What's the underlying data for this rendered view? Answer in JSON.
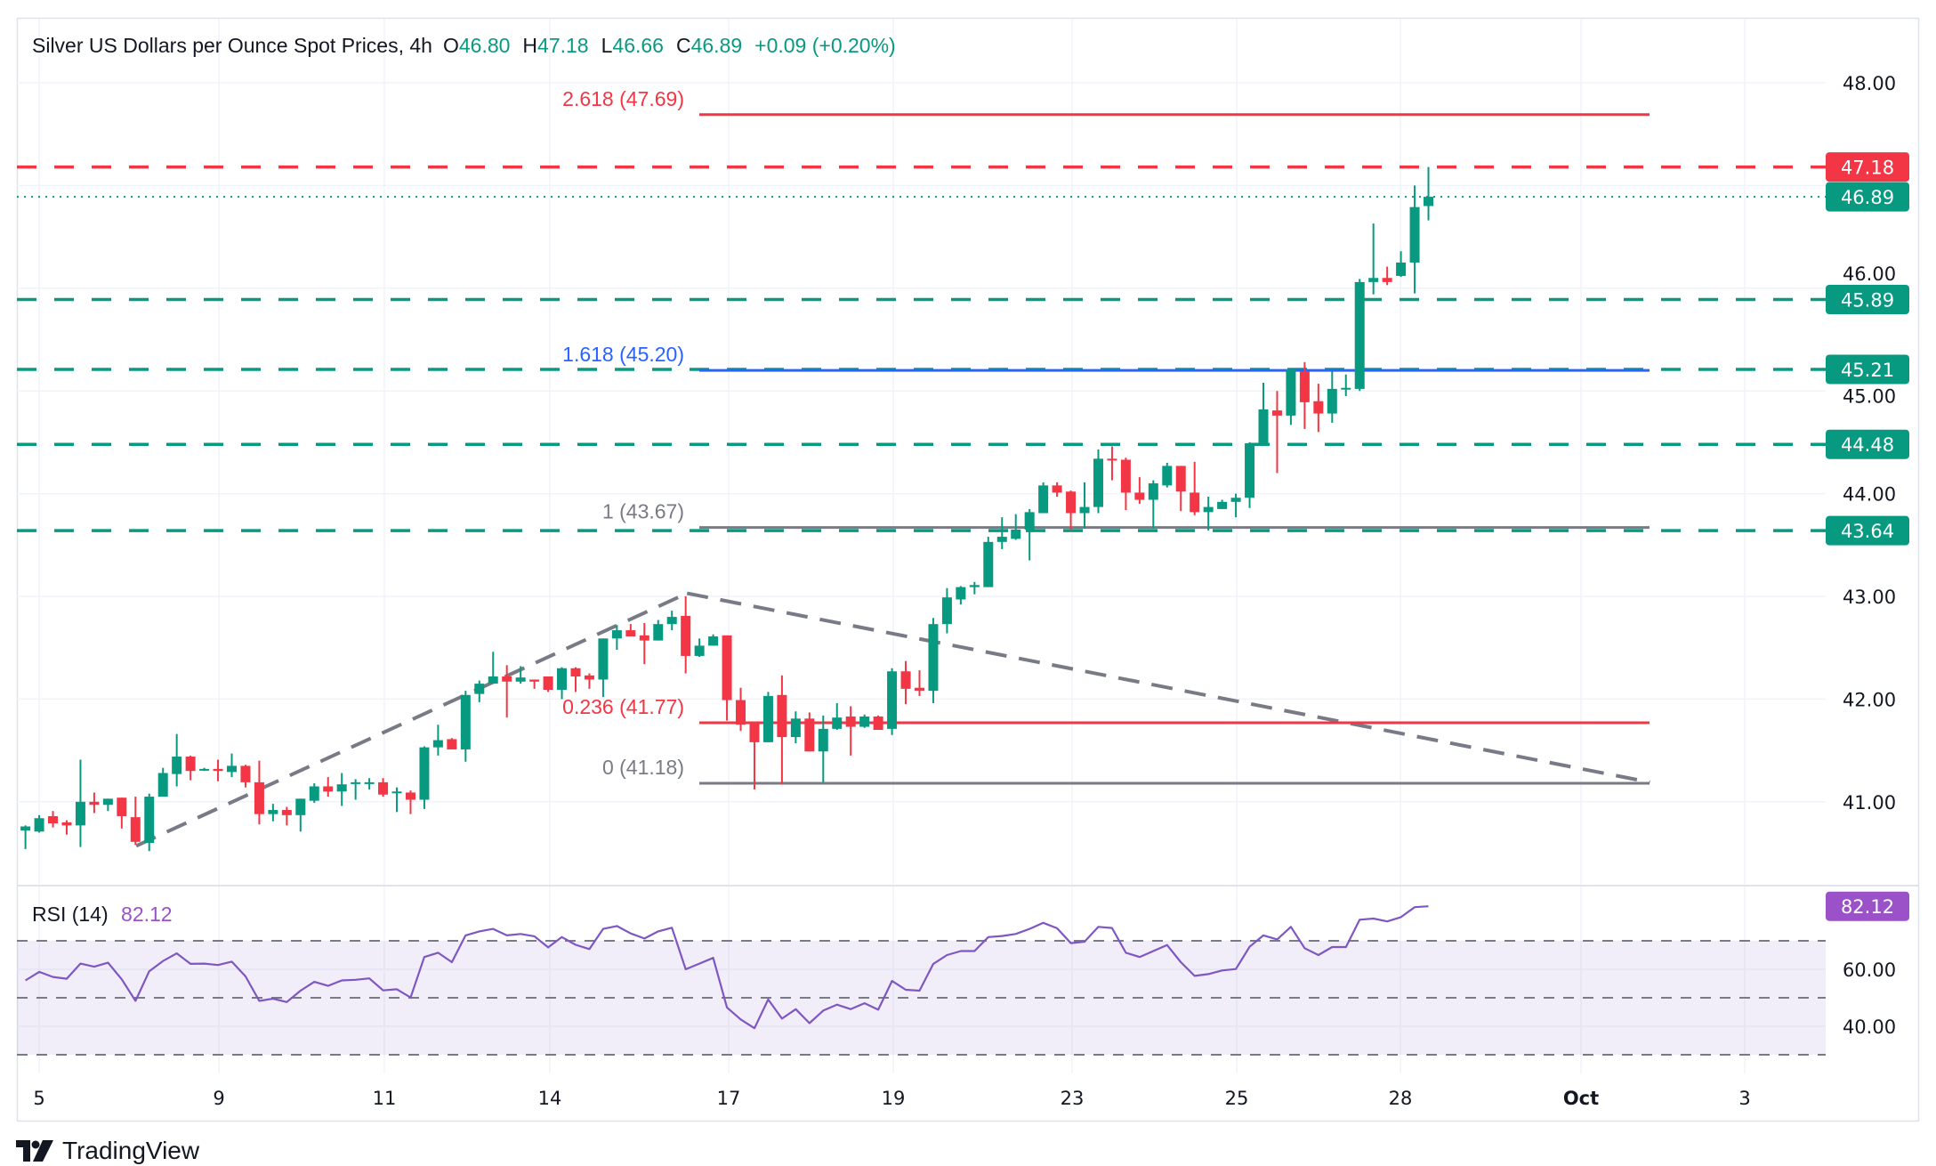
{
  "header": {
    "symbol_title": "Silver US Dollars per Ounce Spot Prices, 4h",
    "open_label": "O",
    "open": "46.80",
    "high_label": "H",
    "high": "47.18",
    "low_label": "L",
    "low": "46.66",
    "close_label": "C",
    "close": "46.89",
    "change": "+0.09 (+0.20%)"
  },
  "colors": {
    "up": "#089981",
    "down": "#F23645",
    "fib_blue": "#2962FF",
    "neutral": "#787B86",
    "rsi_line": "#7E57C2",
    "rsi_tag": "#9B51C8"
  },
  "chart_data": {
    "type": "candlestick",
    "interval": "4h",
    "ylim": [
      40.2,
      48.5
    ],
    "y_tick_labels": [
      "48.00",
      "46.00",
      "45.00",
      "44.00",
      "43.00",
      "42.00",
      "41.00"
    ],
    "x_tick_labels": [
      "5",
      "9",
      "11",
      "14",
      "17",
      "19",
      "23",
      "25",
      "28",
      "Oct",
      "3"
    ],
    "grid": true,
    "ohlc": [
      [
        40.72,
        40.77,
        40.54,
        40.76
      ],
      [
        40.71,
        40.87,
        40.7,
        40.84
      ],
      [
        40.86,
        40.91,
        40.75,
        40.79
      ],
      [
        40.8,
        40.82,
        40.68,
        40.77
      ],
      [
        40.77,
        41.41,
        40.56,
        41.0
      ],
      [
        41.0,
        41.09,
        40.89,
        40.97
      ],
      [
        40.97,
        41.03,
        40.91,
        41.03
      ],
      [
        41.04,
        41.04,
        40.74,
        40.86
      ],
      [
        40.85,
        41.05,
        40.58,
        40.61
      ],
      [
        40.6,
        41.08,
        40.52,
        41.05
      ],
      [
        41.05,
        41.33,
        41.05,
        41.28
      ],
      [
        41.27,
        41.66,
        41.15,
        41.44
      ],
      [
        41.44,
        41.45,
        41.21,
        41.3
      ],
      [
        41.31,
        41.33,
        41.3,
        41.32
      ],
      [
        41.32,
        41.41,
        41.2,
        41.3
      ],
      [
        41.29,
        41.47,
        41.24,
        41.35
      ],
      [
        41.35,
        41.36,
        41.14,
        41.19
      ],
      [
        41.19,
        41.4,
        40.78,
        40.88
      ],
      [
        40.88,
        40.98,
        40.81,
        40.92
      ],
      [
        40.92,
        40.95,
        40.77,
        40.87
      ],
      [
        40.87,
        41.03,
        40.71,
        41.03
      ],
      [
        41.01,
        41.18,
        40.99,
        41.15
      ],
      [
        41.15,
        41.24,
        41.05,
        41.1
      ],
      [
        41.1,
        41.28,
        40.96,
        41.17
      ],
      [
        41.18,
        41.22,
        41.02,
        41.19
      ],
      [
        41.18,
        41.23,
        41.12,
        41.19
      ],
      [
        41.19,
        41.23,
        41.05,
        41.07
      ],
      [
        41.09,
        41.14,
        40.9,
        41.1
      ],
      [
        41.09,
        41.11,
        40.88,
        41.02
      ],
      [
        41.02,
        41.54,
        40.93,
        41.53
      ],
      [
        41.53,
        41.75,
        41.45,
        41.6
      ],
      [
        41.61,
        41.62,
        41.51,
        41.51
      ],
      [
        41.51,
        42.08,
        41.39,
        42.04
      ],
      [
        42.05,
        42.18,
        41.97,
        42.15
      ],
      [
        42.15,
        42.46,
        42.15,
        42.22
      ],
      [
        42.22,
        42.33,
        41.82,
        42.17
      ],
      [
        42.17,
        42.32,
        42.15,
        42.21
      ],
      [
        42.19,
        42.19,
        42.1,
        42.17
      ],
      [
        42.22,
        42.22,
        42.07,
        42.09
      ],
      [
        42.09,
        42.31,
        42.0,
        42.3
      ],
      [
        42.3,
        42.31,
        42.07,
        42.22
      ],
      [
        42.23,
        42.25,
        42.1,
        42.19
      ],
      [
        42.19,
        42.59,
        42.02,
        42.59
      ],
      [
        42.59,
        42.72,
        42.48,
        42.67
      ],
      [
        42.67,
        42.73,
        42.61,
        42.61
      ],
      [
        42.62,
        42.74,
        42.34,
        42.57
      ],
      [
        42.57,
        42.77,
        42.57,
        42.73
      ],
      [
        42.73,
        42.86,
        42.67,
        42.8
      ],
      [
        42.81,
        43.0,
        42.25,
        42.42
      ],
      [
        42.42,
        42.59,
        42.41,
        42.52
      ],
      [
        42.52,
        42.63,
        42.52,
        42.61
      ],
      [
        42.62,
        42.62,
        41.79,
        41.99
      ],
      [
        41.99,
        42.11,
        41.69,
        41.75
      ],
      [
        41.77,
        41.77,
        41.12,
        41.58
      ],
      [
        41.58,
        42.07,
        41.58,
        42.03
      ],
      [
        42.04,
        42.23,
        41.17,
        41.63
      ],
      [
        41.63,
        41.88,
        41.57,
        41.81
      ],
      [
        41.81,
        41.87,
        41.49,
        41.49
      ],
      [
        41.49,
        41.84,
        41.19,
        41.71
      ],
      [
        41.71,
        41.96,
        41.7,
        41.82
      ],
      [
        41.83,
        41.93,
        41.45,
        41.73
      ],
      [
        41.73,
        41.85,
        41.72,
        41.83
      ],
      [
        41.83,
        41.84,
        41.7,
        41.7
      ],
      [
        41.71,
        42.3,
        41.65,
        42.27
      ],
      [
        42.27,
        42.37,
        41.95,
        42.1
      ],
      [
        42.11,
        42.28,
        42.03,
        42.08
      ],
      [
        42.08,
        42.79,
        41.96,
        42.73
      ],
      [
        42.73,
        43.08,
        42.64,
        42.99
      ],
      [
        42.97,
        43.1,
        42.92,
        43.09
      ],
      [
        43.09,
        43.14,
        43.02,
        43.11
      ],
      [
        43.09,
        43.58,
        43.09,
        43.53
      ],
      [
        43.53,
        43.77,
        43.46,
        43.58
      ],
      [
        43.56,
        43.8,
        43.55,
        43.65
      ],
      [
        43.65,
        43.85,
        43.35,
        43.82
      ],
      [
        43.81,
        44.11,
        43.81,
        44.08
      ],
      [
        44.08,
        44.11,
        43.97,
        44.01
      ],
      [
        44.02,
        44.03,
        43.64,
        43.81
      ],
      [
        43.81,
        44.11,
        43.66,
        43.87
      ],
      [
        43.87,
        44.43,
        43.81,
        44.34
      ],
      [
        44.34,
        44.46,
        44.13,
        44.33
      ],
      [
        44.33,
        44.35,
        43.84,
        44.01
      ],
      [
        44.01,
        44.16,
        43.9,
        43.94
      ],
      [
        43.94,
        44.13,
        43.66,
        44.1
      ],
      [
        44.08,
        44.3,
        44.06,
        44.27
      ],
      [
        44.27,
        44.27,
        43.83,
        44.02
      ],
      [
        44.01,
        44.31,
        43.79,
        43.82
      ],
      [
        43.82,
        43.97,
        43.64,
        43.87
      ],
      [
        43.85,
        43.94,
        43.85,
        43.92
      ],
      [
        43.92,
        44.0,
        43.77,
        43.96
      ],
      [
        43.96,
        44.5,
        43.86,
        44.49
      ],
      [
        44.49,
        45.08,
        44.49,
        44.82
      ],
      [
        44.81,
        45.0,
        44.2,
        44.76
      ],
      [
        44.76,
        45.22,
        44.67,
        45.21
      ],
      [
        45.19,
        45.28,
        44.63,
        44.89
      ],
      [
        44.9,
        45.07,
        44.6,
        44.78
      ],
      [
        44.78,
        45.19,
        44.69,
        45.02
      ],
      [
        45.02,
        45.16,
        44.95,
        45.03
      ],
      [
        45.02,
        46.09,
        45.0,
        46.06
      ],
      [
        46.06,
        46.63,
        45.94,
        46.1
      ],
      [
        46.1,
        46.21,
        46.03,
        46.06
      ],
      [
        46.12,
        46.36,
        46.11,
        46.25
      ],
      [
        46.25,
        47.0,
        45.95,
        46.79
      ],
      [
        46.8,
        47.18,
        46.66,
        46.89
      ]
    ],
    "price_levels": [
      {
        "price": 47.18,
        "label": "47.18",
        "style": "dashed",
        "color": "#F23645"
      },
      {
        "price": 46.89,
        "label": "46.89",
        "style": "dotted",
        "color": "#089981"
      },
      {
        "price": 45.89,
        "label": "45.89",
        "style": "dashed",
        "color": "#089981"
      },
      {
        "price": 45.21,
        "label": "45.21",
        "style": "dashed",
        "color": "#089981"
      },
      {
        "price": 44.48,
        "label": "44.48",
        "style": "dashed",
        "color": "#089981"
      },
      {
        "price": 43.64,
        "label": "43.64",
        "style": "dashed",
        "color": "#089981"
      }
    ],
    "fibonacci": [
      {
        "price": 47.69,
        "label": "2.618 (47.69)",
        "color": "#F23645"
      },
      {
        "price": 45.2,
        "label": "1.618 (45.20)",
        "color": "#2962FF"
      },
      {
        "price": 43.67,
        "label": "1 (43.67)",
        "color": "#787B86"
      },
      {
        "price": 41.77,
        "label": "0.236 (41.77)",
        "color": "#F23645"
      },
      {
        "price": 41.18,
        "label": "0 (41.18)",
        "color": "#787B86"
      }
    ],
    "trendline_prices": [
      40.57,
      43.03,
      41.19
    ],
    "rsi": {
      "title": "RSI (14)",
      "value": "82.12",
      "levels": [
        70,
        50,
        30
      ],
      "y_tick_labels": [
        "60.00",
        "40.00"
      ],
      "values": [
        56.1,
        59.1,
        57.3,
        56.7,
        62.0,
        60.9,
        62.3,
        56.5,
        48.9,
        59.3,
        62.9,
        65.6,
        61.9,
        62.0,
        61.5,
        62.7,
        57.5,
        48.9,
        49.7,
        48.5,
        52.5,
        55.6,
        54.2,
        56.1,
        56.3,
        56.8,
        52.6,
        53.0,
        50.1,
        64.3,
        65.8,
        62.5,
        71.9,
        73.3,
        74.2,
        71.9,
        72.4,
        71.6,
        67.7,
        71.3,
        68.6,
        67.1,
        74.2,
        75.2,
        72.6,
        70.8,
        73.3,
        74.6,
        60.0,
        62.0,
        64.0,
        46.6,
        42.4,
        39.3,
        49.4,
        42.7,
        46.0,
        41.1,
        45.5,
        47.6,
        46.0,
        48.1,
        45.8,
        55.9,
        52.8,
        52.5,
        61.9,
        65.0,
        66.4,
        66.4,
        71.3,
        71.7,
        72.4,
        74.2,
        76.3,
        74.4,
        69.2,
        69.7,
        74.9,
        74.5,
        65.8,
        64.3,
        66.4,
        68.5,
        62.5,
        57.7,
        58.3,
        59.6,
        60.1,
        67.9,
        71.9,
        70.5,
        74.9,
        67.4,
        65.0,
        67.8,
        67.8,
        77.4,
        77.8,
        76.8,
        78.3,
        81.8,
        82.12
      ]
    }
  },
  "logo": {
    "text": "TradingView"
  }
}
